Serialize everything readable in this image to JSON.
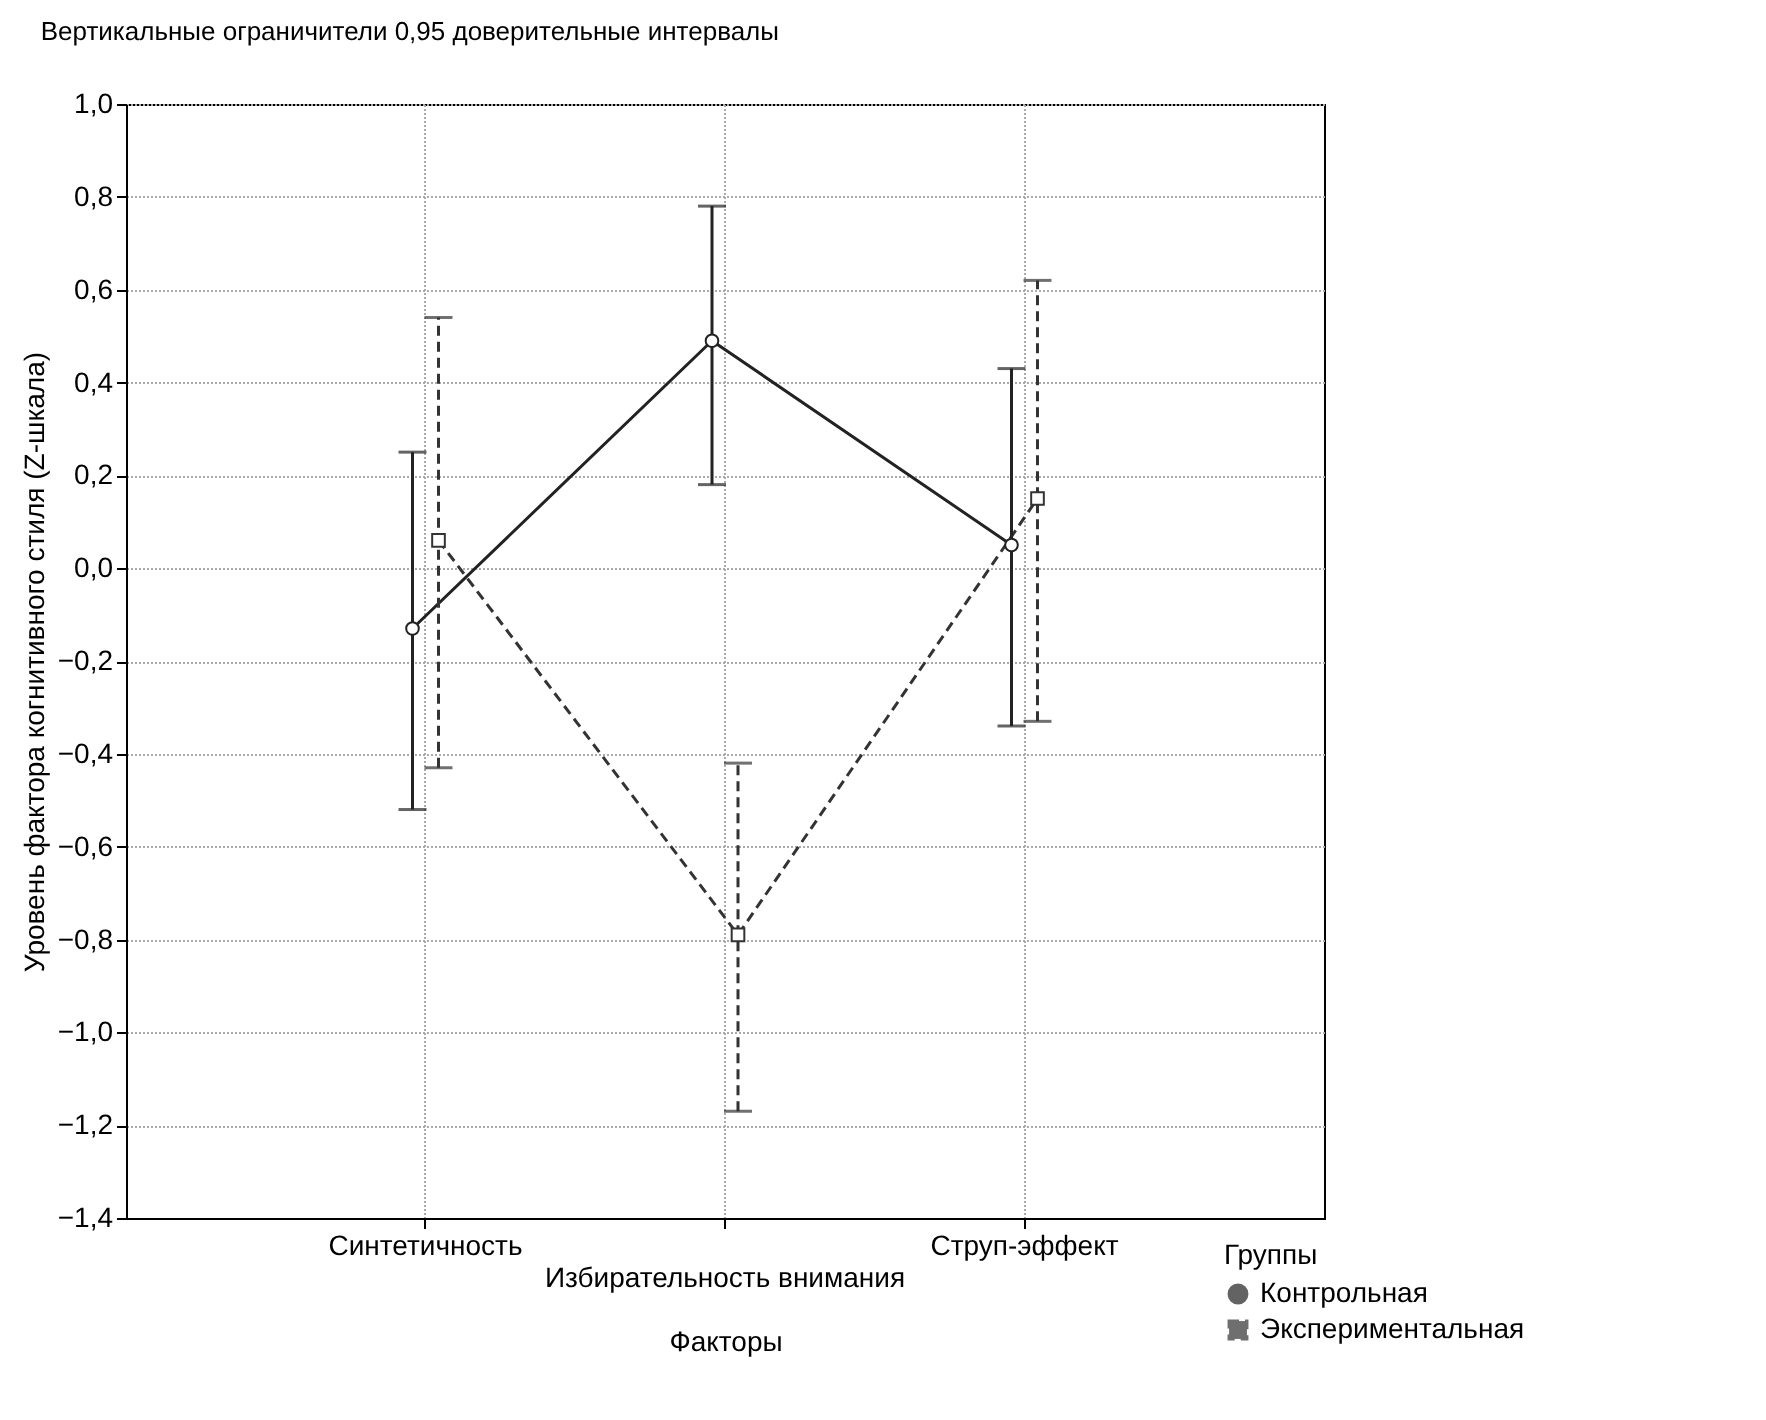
{
  "chart_data": {
    "type": "line",
    "title": "Вертикальные ограничители 0,95 доверительные интервалы",
    "xlabel": "Факторы",
    "ylabel": "Уровень фактора когнитивного стиля (Z-шкала)",
    "legend_title": "Группы",
    "categories": [
      "Синтетичность",
      "Избирательность внимания",
      "Струп-эффект"
    ],
    "ylim": [
      -1.4,
      1.0
    ],
    "yticks": [
      {
        "value": -1.4,
        "label": "−1,4"
      },
      {
        "value": -1.2,
        "label": "−1,2"
      },
      {
        "value": -1.0,
        "label": "−1,0"
      },
      {
        "value": -0.8,
        "label": "−0,8"
      },
      {
        "value": -0.6,
        "label": "−0,6"
      },
      {
        "value": -0.4,
        "label": "−0,4"
      },
      {
        "value": -0.2,
        "label": "−0,2"
      },
      {
        "value": 0,
        "label": "0,0"
      },
      {
        "value": 0.2,
        "label": "0,2"
      },
      {
        "value": 0.4,
        "label": "0,4"
      },
      {
        "value": 0.6,
        "label": "0,6"
      },
      {
        "value": 0.8,
        "label": "0,8"
      },
      {
        "value": 1.0,
        "label": "1,0"
      }
    ],
    "grid": true,
    "legend": "bottom right",
    "series": [
      {
        "name": "Контрольная",
        "color": "#222222",
        "marker": "circle",
        "line_style": "solid",
        "values": [
          -0.13,
          0.49,
          0.05
        ],
        "errors": [
          [
            -0.52,
            0.25
          ],
          [
            0.18,
            0.78
          ],
          [
            -0.34,
            0.43
          ]
        ]
      },
      {
        "name": "Экспериментальная",
        "color": "#333333",
        "marker": "square",
        "line_style": "dashed",
        "values": [
          0.06,
          -0.79,
          0.15
        ],
        "errors": [
          [
            -0.43,
            0.54
          ],
          [
            -1.17,
            -0.42
          ],
          [
            -0.33,
            0.62
          ]
        ]
      }
    ]
  }
}
